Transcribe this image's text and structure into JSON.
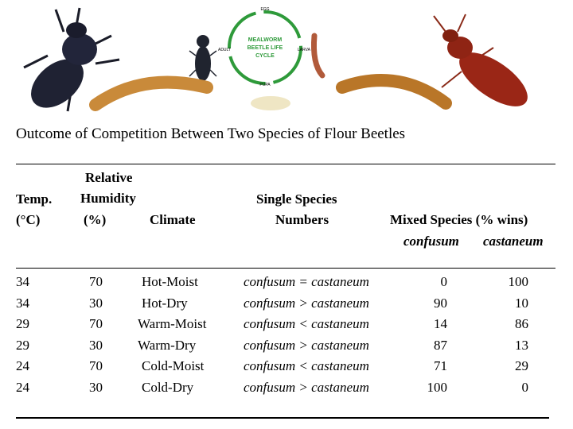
{
  "banner": {
    "cycle_title_line1": "MEALWORM",
    "cycle_title_line2": "BEETLE LIFE",
    "cycle_title_line3": "CYCLE",
    "stage_egg": "EGG",
    "stage_larva": "LARVA",
    "stage_pupa": "PUPA",
    "stage_adult": "ADULT",
    "colors": {
      "arrow": "#2e9a3a",
      "dark_beetle": "#1f2233",
      "red_beetle": "#9a2616",
      "larva": "#c98a3a"
    }
  },
  "title": "Outcome of Competition Between Two Species of Flour Beetles",
  "headers": {
    "temp_line1": "Temp.",
    "temp_line2": "(°C)",
    "rh_line1": "Relative",
    "rh_line2": "Humidity",
    "rh_line3": "(%)",
    "climate": "Climate",
    "single_line1": "Single Species",
    "single_line2": "Numbers",
    "mixed": "Mixed Species (% wins)",
    "mixed_sub1": "confusum",
    "mixed_sub2": "castaneum"
  },
  "rows": [
    {
      "temp": "34",
      "rh": "70",
      "climate": "Hot-Moist",
      "single": "confusum = castaneum",
      "confusum": "0",
      "castaneum": "100"
    },
    {
      "temp": "34",
      "rh": "30",
      "climate": "Hot-Dry",
      "single": "confusum > castaneum",
      "confusum": "90",
      "castaneum": "10"
    },
    {
      "temp": "29",
      "rh": "70",
      "climate": "Warm-Moist",
      "single": "confusum < castaneum",
      "confusum": "14",
      "castaneum": "86"
    },
    {
      "temp": "29",
      "rh": "30",
      "climate": "Warm-Dry",
      "single": "confusum > castaneum",
      "confusum": "87",
      "castaneum": "13"
    },
    {
      "temp": "24",
      "rh": "70",
      "climate": "Cold-Moist",
      "single": "confusum < castaneum",
      "confusum": "71",
      "castaneum": "29"
    },
    {
      "temp": "24",
      "rh": "30",
      "climate": "Cold-Dry",
      "single": "confusum > castaneum",
      "confusum": "100",
      "castaneum": "0"
    }
  ]
}
